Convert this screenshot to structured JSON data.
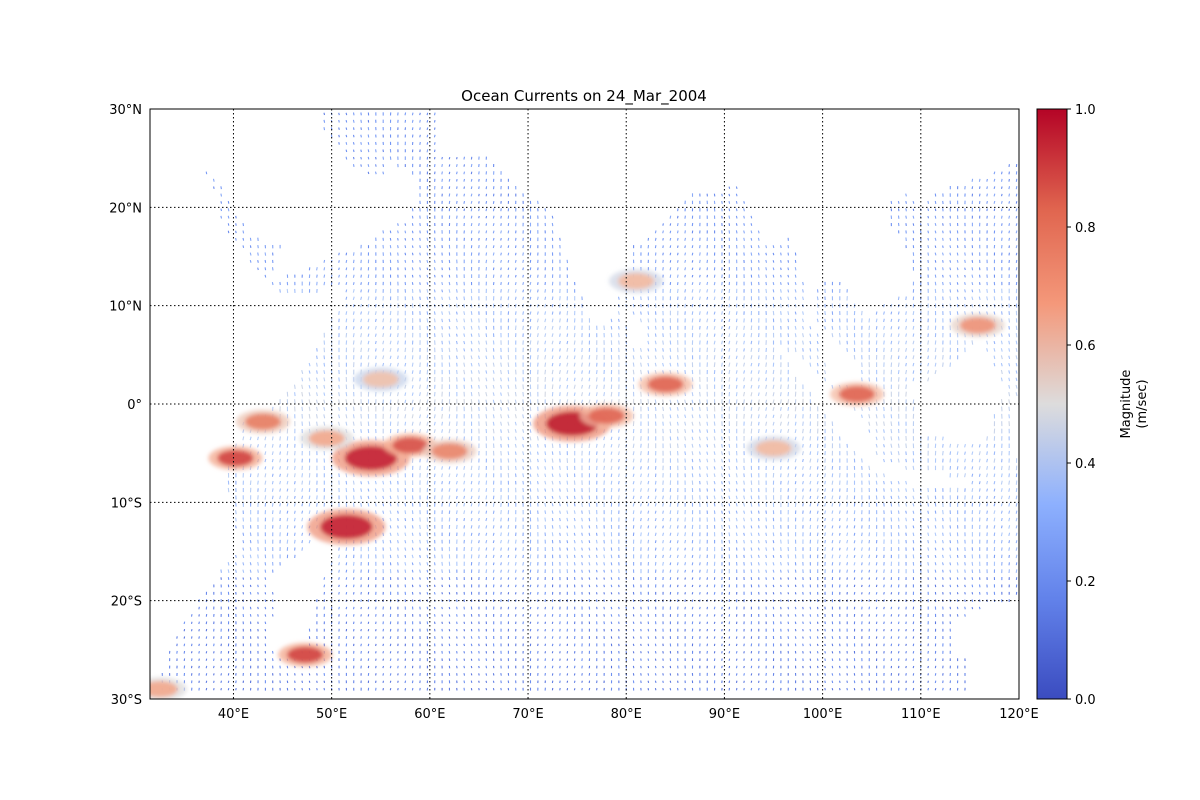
{
  "chart_data": {
    "type": "heatmap",
    "title": "Ocean Currents on 24_Mar_2004",
    "xlim": [
      31.5,
      120
    ],
    "ylim": [
      -30,
      30
    ],
    "x_ticks": [
      {
        "value": 40,
        "label": "40°E"
      },
      {
        "value": 50,
        "label": "50°E"
      },
      {
        "value": 60,
        "label": "60°E"
      },
      {
        "value": 70,
        "label": "70°E"
      },
      {
        "value": 80,
        "label": "80°E"
      },
      {
        "value": 90,
        "label": "90°E"
      },
      {
        "value": 100,
        "label": "100°E"
      },
      {
        "value": 110,
        "label": "110°E"
      },
      {
        "value": 120,
        "label": "120°E"
      }
    ],
    "y_ticks": [
      {
        "value": 30,
        "label": "30°N"
      },
      {
        "value": 20,
        "label": "20°N"
      },
      {
        "value": 10,
        "label": "10°N"
      },
      {
        "value": 0,
        "label": "0°"
      },
      {
        "value": -10,
        "label": "10°S"
      },
      {
        "value": -20,
        "label": "20°S"
      },
      {
        "value": -30,
        "label": "30°S"
      }
    ],
    "grid": true,
    "colorbar": {
      "label_line1": "Magnitude",
      "label_line2": "(m/sec)",
      "range": [
        0.0,
        1.0
      ],
      "ticks": [
        {
          "value": 0.0,
          "label": "0.0"
        },
        {
          "value": 0.2,
          "label": "0.2"
        },
        {
          "value": 0.4,
          "label": "0.4"
        },
        {
          "value": 0.6,
          "label": "0.6"
        },
        {
          "value": 0.8,
          "label": "0.8"
        },
        {
          "value": 1.0,
          "label": "1.0"
        }
      ],
      "colormap": "coolwarm",
      "colors": [
        "#3b4cc0",
        "#7396f5",
        "#b0cbfc",
        "#dddcdc",
        "#f6b69a",
        "#e57058",
        "#b40426"
      ]
    },
    "strong_currents": [
      {
        "lon": 54,
        "lat": -5.5,
        "magnitude": 0.95
      },
      {
        "lon": 58,
        "lat": -4.2,
        "magnitude": 0.88
      },
      {
        "lon": 62,
        "lat": -4.8,
        "magnitude": 0.78
      },
      {
        "lon": 74.5,
        "lat": -2.0,
        "magnitude": 0.96
      },
      {
        "lon": 78,
        "lat": -1.2,
        "magnitude": 0.85
      },
      {
        "lon": 84,
        "lat": 2.0,
        "magnitude": 0.85
      },
      {
        "lon": 40.2,
        "lat": -5.5,
        "magnitude": 0.9
      },
      {
        "lon": 51.5,
        "lat": -12.5,
        "magnitude": 0.95
      },
      {
        "lon": 103.5,
        "lat": 1.0,
        "magnitude": 0.85
      },
      {
        "lon": 47.3,
        "lat": -25.5,
        "magnitude": 0.9
      },
      {
        "lon": 43,
        "lat": -1.8,
        "magnitude": 0.8
      },
      {
        "lon": 49.5,
        "lat": -3.5,
        "magnitude": 0.7
      },
      {
        "lon": 115.8,
        "lat": 8.0,
        "magnitude": 0.75
      },
      {
        "lon": 95,
        "lat": -4.5,
        "magnitude": 0.65
      },
      {
        "lon": 81,
        "lat": 12.5,
        "magnitude": 0.65
      },
      {
        "lon": 32.5,
        "lat": -29.0,
        "magnitude": 0.7
      },
      {
        "lon": 55,
        "lat": 2.5,
        "magnitude": 0.62
      }
    ]
  }
}
